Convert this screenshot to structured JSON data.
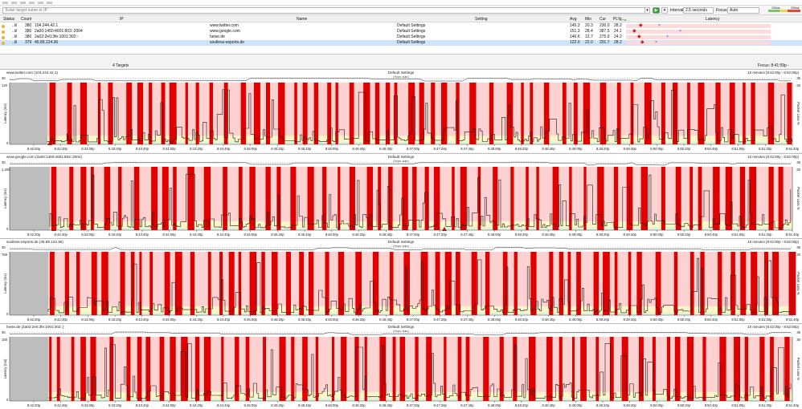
{
  "toolbar": {
    "target_placeholder": "Enter target name or IP",
    "interval_label": "Interval",
    "interval_value": "2.5 seconds",
    "focus_label": "Focus",
    "focus_value": "Auto",
    "legend_low": "100ms",
    "legend_high": "200ms"
  },
  "table": {
    "headers": [
      "Status",
      "Count",
      "IP",
      "Name",
      "Setting",
      "Avg",
      "Min",
      "Cur",
      "PL%",
      "Latency"
    ],
    "rows": [
      {
        "hops": "..lıl",
        "count": "380",
        "ip": "104.244.42.1",
        "name": "www.twitter.com",
        "setting": "Default Settings",
        "avg": "145.3",
        "min": "20.3",
        "cur": "230.0",
        "pl": "28.2"
      },
      {
        "hops": "..lıl",
        "count": "380",
        "ip": "2a00:1450:4001:803::2004",
        "name": "www.google.com",
        "setting": "Default Settings",
        "avg": "151.3",
        "min": "28.4",
        "cur": "387.5",
        "pl": "24.1"
      },
      {
        "hops": "..lıl",
        "count": "380",
        "ip": "2a02:2e0:3fe:1001:302::",
        "name": "heise.de",
        "setting": "Default Settings",
        "avg": "146.6",
        "min": "12.7",
        "cur": "275.9",
        "pl": "24.2"
      },
      {
        "hops": "..lıl",
        "count": "379",
        "ip": "45.89.124.36",
        "name": "soulless-esports.de",
        "setting": "Default Settings",
        "avg": "122.0",
        "min": "22.0",
        "cur": "201.7",
        "pl": "28.2"
      }
    ],
    "scale_label": "0 ms",
    "targets_count": "4 Targets",
    "focus_range": "Focus: 8:41:59p - 8:51:59p"
  },
  "graphs": [
    {
      "title": "www.twitter.com (104.244.42.1)",
      "ymax": "120",
      "hopsmax": "35"
    },
    {
      "title": "www.google.com (2a00:1450:4001:803::2004)",
      "ymax": "1,200",
      "hopsmax": "35"
    },
    {
      "title": "soulless-esports.de (45.89.124.36)",
      "ymax": "750",
      "hopsmax": "35"
    },
    {
      "title": "heise.de (2a02:2e0:3fe:1001:302::)",
      "ymax": "150",
      "hopsmax": "35"
    }
  ],
  "graph_common": {
    "setting": "Default Settings",
    "hops_label": "(Hops: auto)",
    "range": "10 minutes (8:42:00p - 8:52:00p)",
    "ylabel": "Latency (ms)",
    "y2label": "Packet Loss %",
    "y2max": "30",
    "zero": "0",
    "times": [
      "8:42:20p",
      "8:42:40p",
      "8:43:00p",
      "8:43:20p",
      "8:43:40p",
      "8:44:00p",
      "8:44:20p",
      "8:44:40p",
      "8:45:00p",
      "8:45:20p",
      "8:45:40p",
      "8:46:00p",
      "8:46:20p",
      "8:46:40p",
      "8:47:00p",
      "8:47:20p",
      "8:47:40p",
      "8:48:00p",
      "8:48:20p",
      "8:48:40p",
      "8:49:00p",
      "8:49:20p",
      "8:49:40p",
      "8:50:00p",
      "8:50:20p",
      "8:50:40p",
      "8:51:00p",
      "8:51:20p",
      "8:51:40p"
    ]
  },
  "colors": {
    "loss": "#e00000",
    "zone_red": "#ffd2d2",
    "zone_yellow": "#fdf6c9",
    "zone_green": "#def4d8",
    "no_data": "#bdbdbd",
    "line": "#1a1a1a"
  }
}
